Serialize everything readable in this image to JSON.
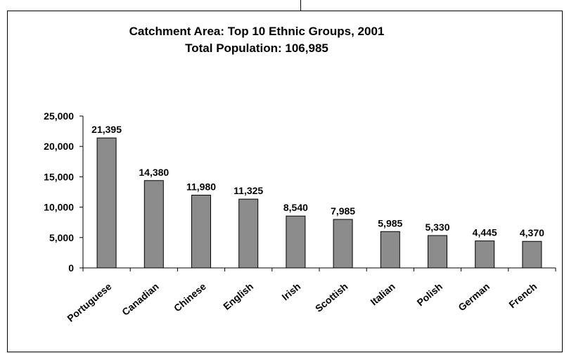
{
  "chart_data": {
    "type": "bar",
    "title": "Catchment Area: Top 10 Ethnic Groups, 2001",
    "subtitle": "Total Population: 106,985",
    "categories": [
      "Portuguese",
      "Canadian",
      "Chinese",
      "English",
      "Irish",
      "Scottish",
      "Italian",
      "Polish",
      "German",
      "French"
    ],
    "values": [
      21395,
      14380,
      11980,
      11325,
      8540,
      7985,
      5985,
      5330,
      4445,
      4370
    ],
    "data_labels": [
      "21,395",
      "14,380",
      "11,980",
      "11,325",
      "8,540",
      "7,985",
      "5,985",
      "5,330",
      "4,445",
      "4,370"
    ],
    "yticks": [
      0,
      5000,
      10000,
      15000,
      20000,
      25000
    ],
    "ytick_labels": [
      "0",
      "5,000",
      "10,000",
      "15,000",
      "20,000",
      "25,000"
    ],
    "ylim": [
      0,
      25000
    ],
    "xlabel": "",
    "ylabel": "",
    "grid": false,
    "legend": "none",
    "bar_color": "#8c8c8c"
  }
}
